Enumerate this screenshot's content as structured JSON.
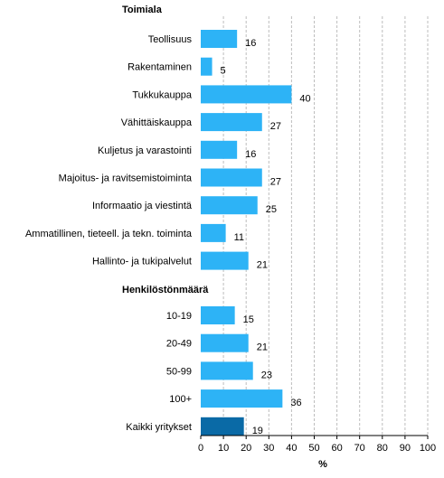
{
  "chart_data": {
    "type": "bar",
    "orientation": "horizontal",
    "xlabel": "%",
    "xlim": [
      0,
      100
    ],
    "xticks": [
      0,
      10,
      20,
      30,
      40,
      50,
      60,
      70,
      80,
      90,
      100
    ],
    "grid": "vertical-dashed",
    "colors": {
      "default": "#2db3f6",
      "highlight": "#0a6aa6"
    },
    "groups": [
      {
        "title": "Toimiala",
        "items": [
          {
            "label": "Teollisuus",
            "value": 16
          },
          {
            "label": "Rakentaminen",
            "value": 5
          },
          {
            "label": "Tukkukauppa",
            "value": 40
          },
          {
            "label": "Vähittäiskauppa",
            "value": 27
          },
          {
            "label": "Kuljetus ja varastointi",
            "value": 16
          },
          {
            "label": "Majoitus- ja ravitsemistoiminta",
            "value": 27
          },
          {
            "label": "Informaatio ja viestintä",
            "value": 25
          },
          {
            "label": "Ammatillinen, tieteell. ja tekn. toiminta",
            "value": 11
          },
          {
            "label": "Hallinto- ja tukipalvelut",
            "value": 21
          }
        ]
      },
      {
        "title": "Henkilöstönmäärä",
        "items": [
          {
            "label": "10-19",
            "value": 15
          },
          {
            "label": "20-49",
            "value": 21
          },
          {
            "label": "50-99",
            "value": 23
          },
          {
            "label": "100+",
            "value": 36
          },
          {
            "label": "Kaikki yritykset",
            "value": 19,
            "highlight": true
          }
        ]
      }
    ]
  }
}
